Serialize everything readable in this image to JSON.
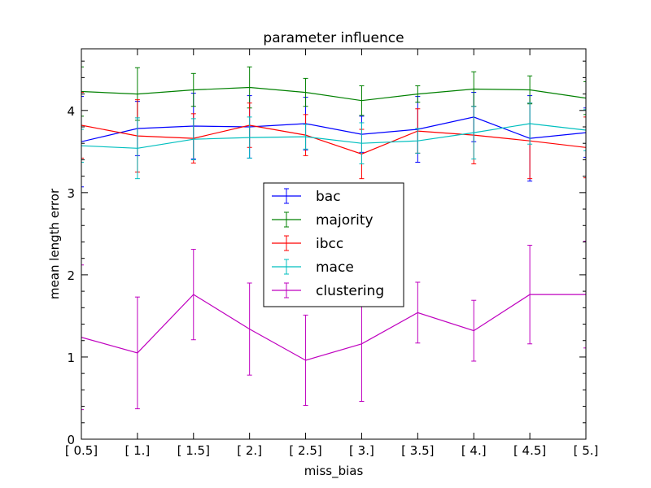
{
  "chart_data": {
    "type": "line",
    "title": "parameter influence",
    "xlabel": "miss_bias",
    "ylabel": "mean length error",
    "categories": [
      "[ 0.5]",
      "[ 1.]",
      "[ 1.5]",
      "[ 2.]",
      "[ 2.5]",
      "[ 3.]",
      "[ 3.5]",
      "[ 4.]",
      "[ 4.5]",
      "[ 5.]"
    ],
    "x": [
      0.5,
      1.0,
      1.5,
      2.0,
      2.5,
      3.0,
      3.5,
      4.0,
      4.5,
      5.0
    ],
    "xlim": [
      0.5,
      5.0
    ],
    "ylim": [
      0,
      4.75
    ],
    "yticks": [
      0,
      1,
      2,
      3,
      4
    ],
    "grid": false,
    "legend_position": "center",
    "series": [
      {
        "name": "bac",
        "color": "#0000ff",
        "values": [
          3.62,
          3.78,
          3.81,
          3.8,
          3.84,
          3.71,
          3.77,
          3.92,
          3.66,
          3.73
        ],
        "errors": [
          0.55,
          0.33,
          0.4,
          0.38,
          0.32,
          0.22,
          0.4,
          0.3,
          0.52,
          0.3
        ]
      },
      {
        "name": "majority",
        "color": "#008000",
        "values": [
          4.23,
          4.2,
          4.25,
          4.28,
          4.22,
          4.12,
          4.2,
          4.26,
          4.25,
          4.15
        ],
        "errors": [
          0.3,
          0.32,
          0.2,
          0.25,
          0.17,
          0.18,
          0.1,
          0.21,
          0.17,
          0.2
        ]
      },
      {
        "name": "ibcc",
        "color": "#ff0000",
        "values": [
          3.82,
          3.69,
          3.66,
          3.82,
          3.7,
          3.47,
          3.75,
          3.7,
          3.63,
          3.55
        ],
        "errors": [
          0.4,
          0.44,
          0.3,
          0.27,
          0.25,
          0.3,
          0.27,
          0.35,
          0.46,
          0.37
        ]
      },
      {
        "name": "mace",
        "color": "#00bfbf",
        "values": [
          3.57,
          3.54,
          3.65,
          3.67,
          3.68,
          3.6,
          3.63,
          3.73,
          3.84,
          3.76
        ],
        "errors": [
          0.2,
          0.37,
          0.25,
          0.25,
          0.15,
          0.25,
          0.15,
          0.32,
          0.25,
          0.25
        ]
      },
      {
        "name": "clustering",
        "color": "#bf00bf",
        "values": [
          1.24,
          1.05,
          1.76,
          1.34,
          0.96,
          1.16,
          1.54,
          1.32,
          1.76,
          1.76
        ],
        "errors": [
          0.88,
          0.68,
          0.55,
          0.56,
          0.55,
          0.7,
          0.37,
          0.37,
          0.6,
          0.65
        ]
      }
    ]
  }
}
